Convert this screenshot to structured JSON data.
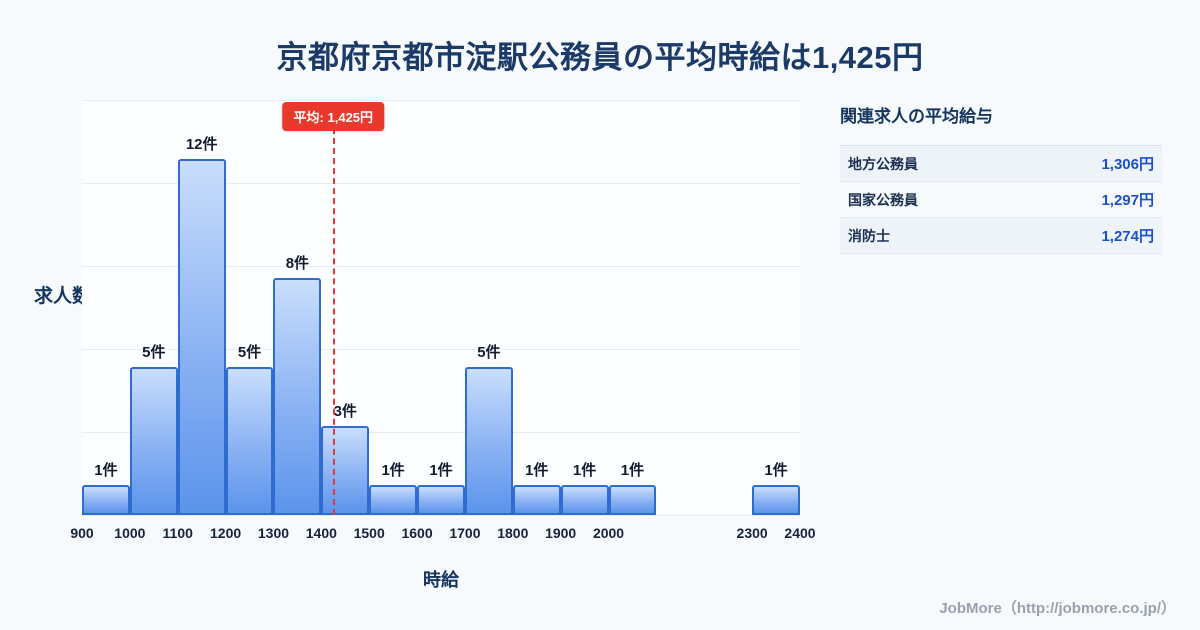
{
  "page": {
    "title": "京都府京都市淀駅公務員の平均時給は1,425円",
    "footer": "JobMore（http://jobmore.co.jp/）"
  },
  "colors": {
    "accent_red": "#e8392c",
    "value_blue": "#1c50cb",
    "bar_border": "#2f6ccd",
    "bar_fill_top": "#c9defb",
    "bar_fill_bottom": "#5c94ec",
    "title_navy": "#1b3a67"
  },
  "chart_data": {
    "type": "bar",
    "title": "京都府京都市淀駅公務員の平均時給は1,425円",
    "xlabel": "時給",
    "ylabel": "求人数",
    "grid": true,
    "x_range": [
      900,
      2400
    ],
    "ylim": [
      0,
      14
    ],
    "x_ticks": [
      "900",
      "1000",
      "1100",
      "1200",
      "1300",
      "1400",
      "1500",
      "1600",
      "1700",
      "1800",
      "1900",
      "2000",
      "2300",
      "2400"
    ],
    "average": {
      "value": 1425,
      "label": "平均: 1,425円"
    },
    "bins": [
      {
        "start": 900,
        "end": 1000,
        "count": 1,
        "label": "1件"
      },
      {
        "start": 1000,
        "end": 1100,
        "count": 5,
        "label": "5件"
      },
      {
        "start": 1100,
        "end": 1200,
        "count": 12,
        "label": "12件"
      },
      {
        "start": 1200,
        "end": 1300,
        "count": 5,
        "label": "5件"
      },
      {
        "start": 1300,
        "end": 1400,
        "count": 8,
        "label": "8件"
      },
      {
        "start": 1400,
        "end": 1500,
        "count": 3,
        "label": "3件"
      },
      {
        "start": 1500,
        "end": 1600,
        "count": 1,
        "label": "1件"
      },
      {
        "start": 1600,
        "end": 1700,
        "count": 1,
        "label": "1件"
      },
      {
        "start": 1700,
        "end": 1800,
        "count": 5,
        "label": "5件"
      },
      {
        "start": 1800,
        "end": 1900,
        "count": 1,
        "label": "1件"
      },
      {
        "start": 1900,
        "end": 2000,
        "count": 1,
        "label": "1件"
      },
      {
        "start": 2000,
        "end": 2100,
        "count": 1,
        "label": "1件"
      },
      {
        "start": 2100,
        "end": 2200,
        "count": 0,
        "label": ""
      },
      {
        "start": 2200,
        "end": 2300,
        "count": 0,
        "label": ""
      },
      {
        "start": 2300,
        "end": 2400,
        "count": 1,
        "label": "1件"
      }
    ]
  },
  "side_panel": {
    "heading": "関連求人の平均給与",
    "rows": [
      {
        "name": "地方公務員",
        "value": "1,306円"
      },
      {
        "name": "国家公務員",
        "value": "1,297円"
      },
      {
        "name": "消防士",
        "value": "1,274円"
      }
    ]
  }
}
